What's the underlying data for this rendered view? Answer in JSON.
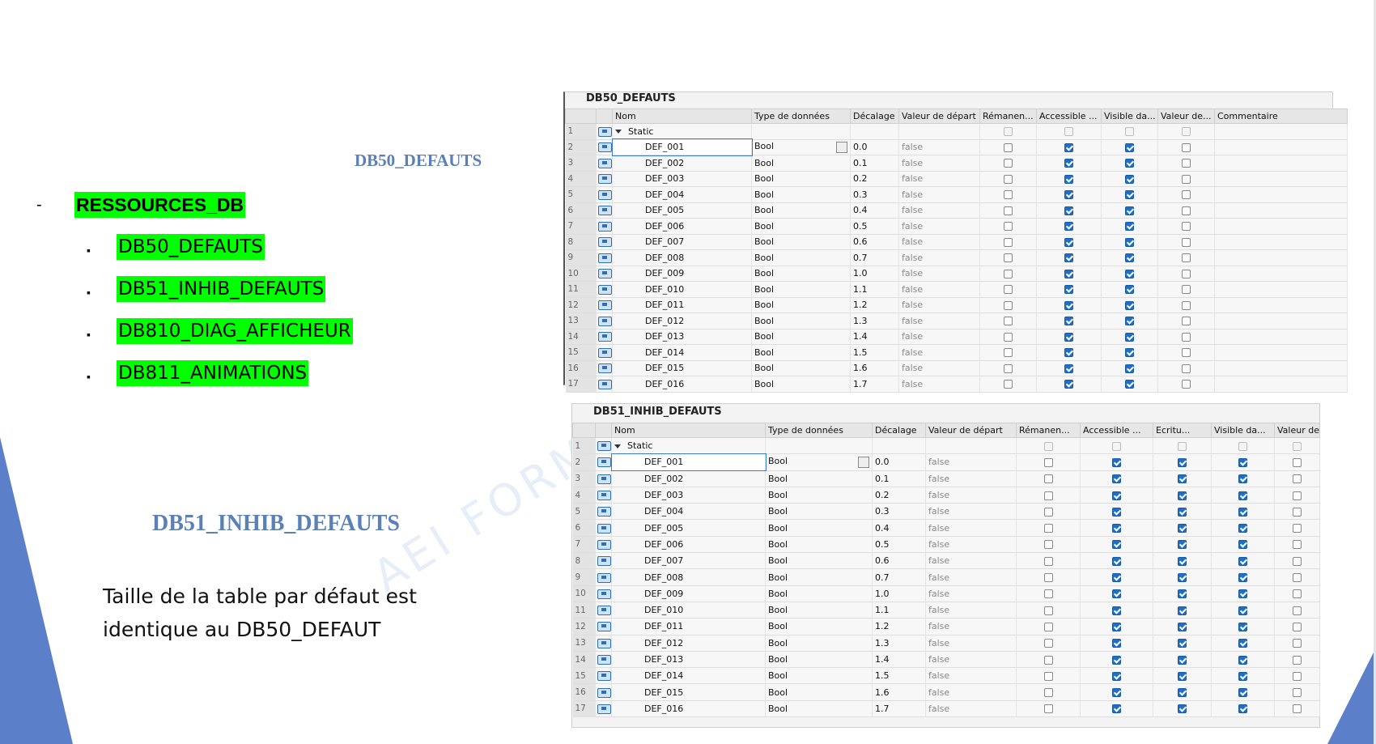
{
  "slide": {
    "title_db50": "DB50_DEFAUTS",
    "title_db51": "DB51_INHIB_DEFAUTS",
    "list_dash": "-",
    "main_item": "RESSOURCES_DB",
    "bullet": "▪",
    "sub_items": [
      "DB50_DEFAUTS",
      "DB51_INHIB_DEFAUTS",
      "DB810_DIAG_AFFICHEUR",
      "DB811_ANIMATIONS"
    ],
    "note_line1": "Taille de la table par défaut est",
    "note_line2": "identique au DB50_DEFAUT",
    "watermark": "AEI FORMA",
    "accent_color": "#5b7fb7",
    "highlight_color": "#00ff00"
  },
  "table1": {
    "title": "DB50_DEFAUTS",
    "headers": [
      "Nom",
      "Type de données",
      "Décalage",
      "Valeur de départ",
      "Rémanen...",
      "Accessible ...",
      "Visible da...",
      "Valeur de...",
      "Commentaire"
    ],
    "static_label": "Static",
    "rows": [
      {
        "n": "1"
      },
      {
        "n": "2",
        "name": "DEF_001",
        "type": "Bool",
        "off": "0.0",
        "val": "false"
      },
      {
        "n": "3",
        "name": "DEF_002",
        "type": "Bool",
        "off": "0.1",
        "val": "false"
      },
      {
        "n": "4",
        "name": "DEF_003",
        "type": "Bool",
        "off": "0.2",
        "val": "false"
      },
      {
        "n": "5",
        "name": "DEF_004",
        "type": "Bool",
        "off": "0.3",
        "val": "false"
      },
      {
        "n": "6",
        "name": "DEF_005",
        "type": "Bool",
        "off": "0.4",
        "val": "false"
      },
      {
        "n": "7",
        "name": "DEF_006",
        "type": "Bool",
        "off": "0.5",
        "val": "false"
      },
      {
        "n": "8",
        "name": "DEF_007",
        "type": "Bool",
        "off": "0.6",
        "val": "false"
      },
      {
        "n": "9",
        "name": "DEF_008",
        "type": "Bool",
        "off": "0.7",
        "val": "false"
      },
      {
        "n": "10",
        "name": "DEF_009",
        "type": "Bool",
        "off": "1.0",
        "val": "false"
      },
      {
        "n": "11",
        "name": "DEF_010",
        "type": "Bool",
        "off": "1.1",
        "val": "false"
      },
      {
        "n": "12",
        "name": "DEF_011",
        "type": "Bool",
        "off": "1.2",
        "val": "false"
      },
      {
        "n": "13",
        "name": "DEF_012",
        "type": "Bool",
        "off": "1.3",
        "val": "false"
      },
      {
        "n": "14",
        "name": "DEF_013",
        "type": "Bool",
        "off": "1.4",
        "val": "false"
      },
      {
        "n": "15",
        "name": "DEF_014",
        "type": "Bool",
        "off": "1.5",
        "val": "false"
      },
      {
        "n": "16",
        "name": "DEF_015",
        "type": "Bool",
        "off": "1.6",
        "val": "false"
      },
      {
        "n": "17",
        "name": "DEF_016",
        "type": "Bool",
        "off": "1.7",
        "val": "false"
      }
    ]
  },
  "table2": {
    "title": "DB51_INHIB_DEFAUTS",
    "headers": [
      "Nom",
      "Type de données",
      "Décalage",
      "Valeur de départ",
      "Rémanen...",
      "Accessible ...",
      "Ecritu...",
      "Visible da...",
      "Valeur de..."
    ],
    "static_label": "Static",
    "rows": [
      {
        "n": "1"
      },
      {
        "n": "2",
        "name": "DEF_001",
        "type": "Bool",
        "off": "0.0",
        "val": "false"
      },
      {
        "n": "3",
        "name": "DEF_002",
        "type": "Bool",
        "off": "0.1",
        "val": "false"
      },
      {
        "n": "4",
        "name": "DEF_003",
        "type": "Bool",
        "off": "0.2",
        "val": "false"
      },
      {
        "n": "5",
        "name": "DEF_004",
        "type": "Bool",
        "off": "0.3",
        "val": "false"
      },
      {
        "n": "6",
        "name": "DEF_005",
        "type": "Bool",
        "off": "0.4",
        "val": "false"
      },
      {
        "n": "7",
        "name": "DEF_006",
        "type": "Bool",
        "off": "0.5",
        "val": "false"
      },
      {
        "n": "8",
        "name": "DEF_007",
        "type": "Bool",
        "off": "0.6",
        "val": "false"
      },
      {
        "n": "9",
        "name": "DEF_008",
        "type": "Bool",
        "off": "0.7",
        "val": "false"
      },
      {
        "n": "10",
        "name": "DEF_009",
        "type": "Bool",
        "off": "1.0",
        "val": "false"
      },
      {
        "n": "11",
        "name": "DEF_010",
        "type": "Bool",
        "off": "1.1",
        "val": "false"
      },
      {
        "n": "12",
        "name": "DEF_011",
        "type": "Bool",
        "off": "1.2",
        "val": "false"
      },
      {
        "n": "13",
        "name": "DEF_012",
        "type": "Bool",
        "off": "1.3",
        "val": "false"
      },
      {
        "n": "14",
        "name": "DEF_013",
        "type": "Bool",
        "off": "1.4",
        "val": "false"
      },
      {
        "n": "15",
        "name": "DEF_014",
        "type": "Bool",
        "off": "1.5",
        "val": "false"
      },
      {
        "n": "16",
        "name": "DEF_015",
        "type": "Bool",
        "off": "1.6",
        "val": "false"
      },
      {
        "n": "17",
        "name": "DEF_016",
        "type": "Bool",
        "off": "1.7",
        "val": "false"
      }
    ]
  }
}
